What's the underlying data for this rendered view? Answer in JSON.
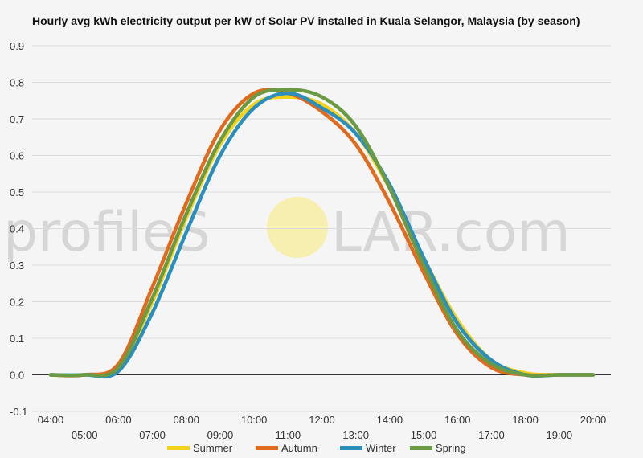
{
  "chart_data": {
    "type": "line",
    "title": "Hourly avg kWh electricity output per kW of Solar PV installed in Kuala Selangor, Malaysia (by season)",
    "xlabel": "",
    "ylabel": "",
    "x": [
      "04:00",
      "05:00",
      "06:00",
      "07:00",
      "08:00",
      "09:00",
      "10:00",
      "11:00",
      "12:00",
      "13:00",
      "14:00",
      "15:00",
      "16:00",
      "17:00",
      "18:00",
      "19:00",
      "20:00"
    ],
    "ylim": [
      -0.1,
      0.9
    ],
    "yticks": [
      -0.1,
      0.0,
      0.1,
      0.2,
      0.3,
      0.4,
      0.5,
      0.6,
      0.7,
      0.8,
      0.9
    ],
    "ytick_labels": [
      "-0.1",
      "0.0",
      "0.1",
      "0.2",
      "0.3",
      "0.4",
      "0.5",
      "0.6",
      "0.7",
      "0.8",
      "0.9"
    ],
    "grid": true,
    "legend_position": "bottom",
    "series": [
      {
        "name": "Summer",
        "color": "#f2d21b",
        "values": [
          0.0,
          0.0,
          0.02,
          0.2,
          0.43,
          0.63,
          0.74,
          0.76,
          0.74,
          0.66,
          0.51,
          0.32,
          0.15,
          0.04,
          0.005,
          0.0,
          0.0
        ]
      },
      {
        "name": "Autumn",
        "color": "#e06a1e",
        "values": [
          0.0,
          0.0,
          0.03,
          0.24,
          0.47,
          0.67,
          0.77,
          0.77,
          0.72,
          0.63,
          0.47,
          0.28,
          0.11,
          0.02,
          0.0,
          0.0,
          0.0
        ]
      },
      {
        "name": "Winter",
        "color": "#2a8fbd",
        "values": [
          0.0,
          0.0,
          0.01,
          0.17,
          0.39,
          0.6,
          0.73,
          0.77,
          0.73,
          0.66,
          0.52,
          0.32,
          0.14,
          0.04,
          0.0,
          0.0,
          0.0
        ]
      },
      {
        "name": "Spring",
        "color": "#6b9a43",
        "values": [
          0.0,
          0.0,
          0.02,
          0.21,
          0.44,
          0.64,
          0.76,
          0.78,
          0.76,
          0.68,
          0.51,
          0.3,
          0.12,
          0.03,
          0.0,
          0.0,
          0.0
        ]
      }
    ]
  },
  "watermark": {
    "text_left": "profileS",
    "text_right": "LAR.com",
    "sun_color": "#f7efb0"
  }
}
